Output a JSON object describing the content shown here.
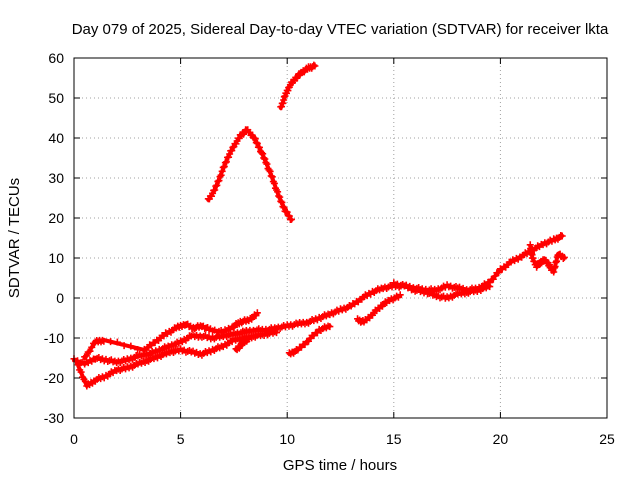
{
  "chart_data": {
    "type": "scatter",
    "title": "Day 079 of 2025, Sidereal Day-to-day VTEC variation (SDTVAR) for receiver lkta",
    "xlabel": "GPS time / hours",
    "ylabel": "SDTVAR / TECUs",
    "xlim": [
      0,
      25
    ],
    "ylim": [
      -30,
      60
    ],
    "x_ticks": [
      "0",
      "5",
      "10",
      "15",
      "20",
      "25"
    ],
    "y_ticks": [
      "-30",
      "-20",
      "-10",
      "0",
      "10",
      "20",
      "30",
      "40",
      "50",
      "60"
    ],
    "grid": true,
    "marker": "+",
    "color": "#ff0000",
    "series": [
      {
        "name": "arc-upper-a",
        "points": [
          [
            6.3,
            24.5
          ],
          [
            6.6,
            27
          ],
          [
            6.9,
            31
          ],
          [
            7.2,
            35
          ],
          [
            7.5,
            38
          ],
          [
            7.8,
            40.5
          ],
          [
            8.1,
            42
          ],
          [
            8.4,
            40.5
          ],
          [
            8.7,
            37.5
          ],
          [
            9.0,
            34
          ],
          [
            9.3,
            30
          ],
          [
            9.6,
            25.5
          ],
          [
            9.9,
            22
          ],
          [
            10.2,
            19.5
          ]
        ]
      },
      {
        "name": "arc-upper-b",
        "points": [
          [
            9.7,
            47.5
          ],
          [
            9.9,
            50.5
          ],
          [
            10.1,
            53
          ],
          [
            10.4,
            55
          ],
          [
            10.7,
            56.5
          ],
          [
            11.0,
            57.5
          ],
          [
            11.3,
            58
          ]
        ]
      },
      {
        "name": "band-main",
        "points": [
          [
            0.0,
            -15.5
          ],
          [
            0.5,
            -16.5
          ],
          [
            1.0,
            -15
          ],
          [
            1.5,
            -15.5
          ],
          [
            2.0,
            -16
          ],
          [
            2.5,
            -15.5
          ],
          [
            3.0,
            -14.5
          ],
          [
            3.5,
            -14
          ],
          [
            4.0,
            -13
          ],
          [
            4.5,
            -12
          ],
          [
            5.0,
            -11
          ],
          [
            5.5,
            -9.5
          ],
          [
            6.0,
            -9.5
          ],
          [
            6.5,
            -10
          ],
          [
            7.0,
            -9.5
          ],
          [
            7.5,
            -9
          ],
          [
            8.0,
            -8.5
          ],
          [
            8.5,
            -8
          ],
          [
            9.0,
            -8
          ],
          [
            9.5,
            -7.5
          ],
          [
            10.0,
            -7
          ],
          [
            10.5,
            -6.5
          ],
          [
            11.0,
            -6
          ],
          [
            11.5,
            -5
          ],
          [
            12.0,
            -4
          ],
          [
            12.5,
            -3
          ],
          [
            13.0,
            -2
          ],
          [
            13.5,
            0
          ],
          [
            14.0,
            1.5
          ],
          [
            14.5,
            2.5
          ],
          [
            15.0,
            3
          ],
          [
            15.5,
            3
          ],
          [
            16.0,
            2.5
          ],
          [
            16.5,
            2
          ],
          [
            17.0,
            2
          ],
          [
            17.5,
            3
          ],
          [
            18.0,
            2.5
          ],
          [
            18.5,
            2
          ],
          [
            19.0,
            2.5
          ],
          [
            19.5,
            4
          ],
          [
            20.0,
            7
          ],
          [
            20.5,
            9
          ],
          [
            21.0,
            10.5
          ],
          [
            21.5,
            12
          ],
          [
            22.0,
            13.5
          ],
          [
            22.5,
            14.5
          ],
          [
            22.9,
            15.5
          ]
        ]
      },
      {
        "name": "band-lower",
        "points": [
          [
            0.2,
            -17
          ],
          [
            0.6,
            -22
          ],
          [
            1.0,
            -20.5
          ],
          [
            1.5,
            -19.5
          ],
          [
            2.0,
            -18
          ],
          [
            2.5,
            -17.5
          ],
          [
            3.0,
            -16.5
          ],
          [
            3.5,
            -15.5
          ],
          [
            4.0,
            -14.5
          ],
          [
            4.5,
            -13.5
          ],
          [
            5.0,
            -13
          ],
          [
            5.5,
            -13.5
          ],
          [
            6.0,
            -14
          ],
          [
            6.5,
            -13
          ],
          [
            7.0,
            -12
          ],
          [
            7.5,
            -10.5
          ],
          [
            8.0,
            -10
          ],
          [
            8.5,
            -9.5
          ],
          [
            9.0,
            -9
          ],
          [
            9.5,
            -8.5
          ]
        ]
      },
      {
        "name": "band-upper-spur",
        "points": [
          [
            0.5,
            -15
          ],
          [
            1.0,
            -11
          ],
          [
            1.4,
            -10.5
          ],
          [
            3.3,
            -13
          ],
          [
            3.8,
            -11
          ],
          [
            4.3,
            -9
          ],
          [
            4.8,
            -7.5
          ],
          [
            5.2,
            -6.5
          ],
          [
            5.6,
            -7.5
          ],
          [
            6.0,
            -7
          ],
          [
            6.4,
            -8
          ],
          [
            7.0,
            -8.5
          ],
          [
            7.5,
            -7
          ],
          [
            7.8,
            -6
          ],
          [
            8.2,
            -5.5
          ],
          [
            8.6,
            -4
          ]
        ]
      },
      {
        "name": "dip-1",
        "points": [
          [
            7.6,
            -13
          ],
          [
            7.9,
            -11.5
          ],
          [
            8.2,
            -10
          ]
        ]
      },
      {
        "name": "dip-2",
        "points": [
          [
            10.1,
            -14
          ],
          [
            10.5,
            -13
          ],
          [
            11.0,
            -10.5
          ],
          [
            11.5,
            -8
          ],
          [
            12.0,
            -7
          ]
        ]
      },
      {
        "name": "dip-3",
        "points": [
          [
            13.3,
            -5.5
          ],
          [
            13.6,
            -6
          ],
          [
            14.0,
            -4
          ],
          [
            14.4,
            -2
          ],
          [
            14.8,
            -0.5
          ],
          [
            15.3,
            0.5
          ]
        ]
      },
      {
        "name": "band-after-15",
        "points": [
          [
            15.0,
            3.5
          ],
          [
            15.5,
            3
          ],
          [
            16.0,
            2
          ],
          [
            16.5,
            1.5
          ],
          [
            17.0,
            0.5
          ],
          [
            17.5,
            0
          ],
          [
            18.0,
            1
          ],
          [
            18.5,
            1.5
          ],
          [
            19.0,
            2
          ],
          [
            19.5,
            3
          ]
        ]
      },
      {
        "name": "late-spurs",
        "points": [
          [
            21.4,
            13
          ],
          [
            21.5,
            10
          ],
          [
            21.7,
            8
          ],
          [
            21.9,
            9
          ],
          [
            22.1,
            9.5
          ],
          [
            22.3,
            8
          ],
          [
            22.5,
            6.5
          ],
          [
            22.7,
            11
          ],
          [
            23.0,
            10
          ]
        ]
      }
    ]
  }
}
